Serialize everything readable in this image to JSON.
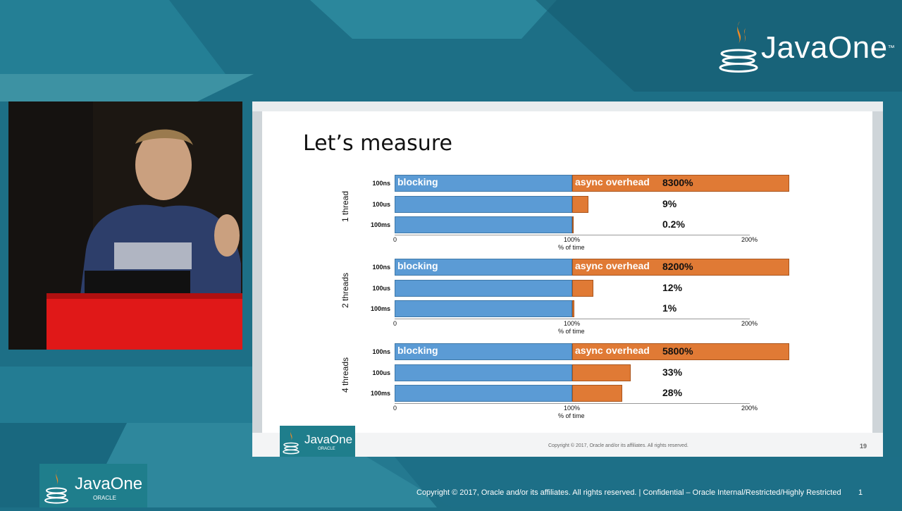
{
  "brand": {
    "name": "JavaOne",
    "tm": "™",
    "oracle": "ORACLE"
  },
  "colors": {
    "background": "#1d6f86",
    "blocking": "#5b9bd5",
    "async": "#e07a35",
    "badge": "#1f7e8c"
  },
  "slide": {
    "title": "Let’s measure",
    "copyright": "Copyright © 2017, Oracle and/or its affiliates. All rights reserved.",
    "page": "19"
  },
  "chart_data": {
    "type": "bar",
    "orientation": "horizontal-stacked",
    "xlabel": "% of time",
    "xlim": [
      0,
      200
    ],
    "x_ticks": [
      "0",
      "100%",
      "200%"
    ],
    "segments": [
      "blocking",
      "async overhead"
    ],
    "groups": [
      {
        "name": "1 thread",
        "rows": [
          {
            "label": "100ns",
            "blocking": 100,
            "async_overhead": 8300,
            "overhead_label": "8300%"
          },
          {
            "label": "100us",
            "blocking": 100,
            "async_overhead": 9,
            "overhead_label": "9%"
          },
          {
            "label": "100ms",
            "blocking": 100,
            "async_overhead": 0.2,
            "overhead_label": "0.2%"
          }
        ]
      },
      {
        "name": "2 threads",
        "rows": [
          {
            "label": "100ns",
            "blocking": 100,
            "async_overhead": 8200,
            "overhead_label": "8200%"
          },
          {
            "label": "100us",
            "blocking": 100,
            "async_overhead": 12,
            "overhead_label": "12%"
          },
          {
            "label": "100ms",
            "blocking": 100,
            "async_overhead": 1,
            "overhead_label": "1%"
          }
        ]
      },
      {
        "name": "4 threads",
        "rows": [
          {
            "label": "100ns",
            "blocking": 100,
            "async_overhead": 5800,
            "overhead_label": "5800%"
          },
          {
            "label": "100us",
            "blocking": 100,
            "async_overhead": 33,
            "overhead_label": "33%"
          },
          {
            "label": "100ms",
            "blocking": 100,
            "async_overhead": 28,
            "overhead_label": "28%"
          }
        ]
      }
    ]
  },
  "footer": {
    "text": "Copyright © 2017, Oracle and/or its affiliates. All rights reserved.  |  Confidential – Oracle Internal/Restricted/Highly Restricted",
    "page": "1"
  }
}
